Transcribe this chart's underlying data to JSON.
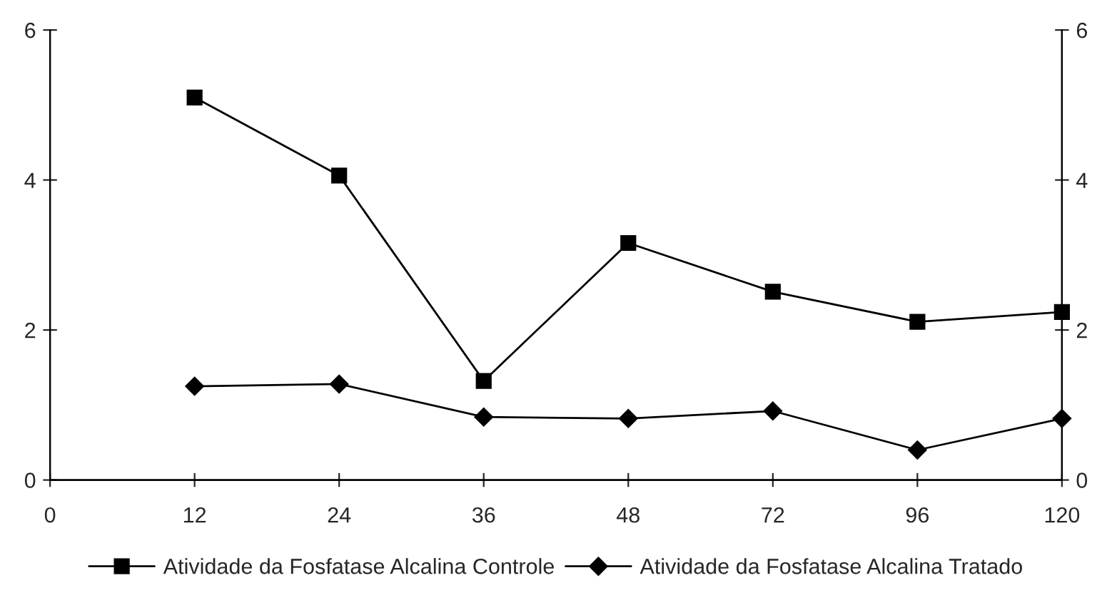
{
  "chart_data": {
    "type": "line",
    "categories": [
      "0",
      "12",
      "24",
      "36",
      "48",
      "72",
      "96",
      "120"
    ],
    "series": [
      {
        "name": "Atividade da Fosfatase Alcalina Controle",
        "color": "#000000",
        "marker": "square",
        "values": [
          null,
          5.1,
          4.06,
          1.32,
          3.16,
          2.51,
          2.11,
          2.24
        ]
      },
      {
        "name": "Atividade da Fosfatase Alcalina Tratado",
        "color": "#000000",
        "marker": "diamond",
        "values": [
          null,
          1.25,
          1.28,
          0.84,
          0.82,
          0.92,
          0.4,
          0.82
        ]
      }
    ],
    "ylim": [
      0,
      6
    ],
    "yticks": [
      0,
      2,
      4,
      6
    ],
    "y2lim": [
      0,
      6
    ],
    "y2ticks": [
      0,
      2,
      4,
      6
    ],
    "grid": false,
    "legend": "bottom",
    "line_style": "solid"
  }
}
